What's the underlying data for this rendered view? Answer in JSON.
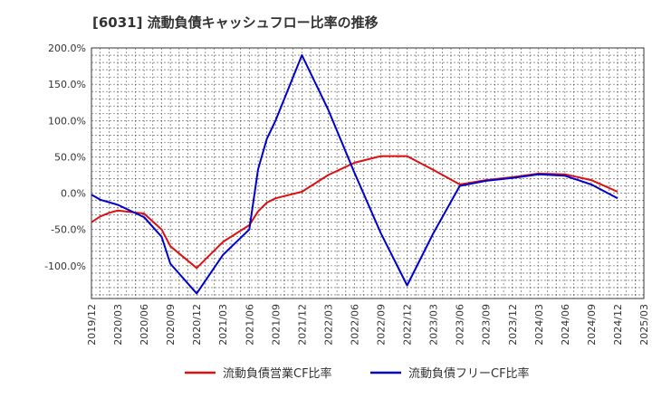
{
  "chart_data": {
    "type": "line",
    "title": "[6031]  流動負債キャッシュフロー比率の推移",
    "xlabel": "",
    "ylabel": "",
    "x_ticks": [
      "2019/12",
      "2020/03",
      "2020/06",
      "2020/09",
      "2020/12",
      "2021/03",
      "2021/06",
      "2021/09",
      "2021/12",
      "2022/03",
      "2022/06",
      "2022/09",
      "2022/12",
      "2023/03",
      "2023/06",
      "2023/09",
      "2023/12",
      "2024/03",
      "2024/06",
      "2024/09",
      "2024/12",
      "2025/03"
    ],
    "y_ticks": [
      {
        "value": 200,
        "label": "200.0%"
      },
      {
        "value": 150,
        "label": "150.0%"
      },
      {
        "value": 100,
        "label": "100.0%"
      },
      {
        "value": 50,
        "label": "50.0%"
      },
      {
        "value": 0,
        "label": "0.0%"
      },
      {
        "value": -50,
        "label": "-50.0%"
      },
      {
        "value": -100,
        "label": "-100.0%"
      }
    ],
    "ylim": [
      -145,
      200
    ],
    "grid": true,
    "legend_position": "bottom",
    "series": [
      {
        "name": "流動負債営業CF比率",
        "color": "#dd1111",
        "points": [
          [
            "2019/12",
            -40
          ],
          [
            "2020/01",
            -32
          ],
          [
            "2020/02",
            -27
          ],
          [
            "2020/03",
            -24
          ],
          [
            "2020/06",
            -28
          ],
          [
            "2020/08",
            -50
          ],
          [
            "2020/09",
            -73
          ],
          [
            "2020/12",
            -103
          ],
          [
            "2021/03",
            -67
          ],
          [
            "2021/06",
            -44
          ],
          [
            "2021/07",
            -25
          ],
          [
            "2021/08",
            -13
          ],
          [
            "2021/09",
            -7
          ],
          [
            "2021/12",
            2
          ],
          [
            "2022/03",
            25
          ],
          [
            "2022/06",
            42
          ],
          [
            "2022/09",
            51
          ],
          [
            "2022/12",
            51
          ],
          [
            "2023/03",
            32
          ],
          [
            "2023/06",
            12
          ],
          [
            "2023/09",
            18
          ],
          [
            "2023/12",
            22
          ],
          [
            "2024/03",
            27
          ],
          [
            "2024/06",
            26
          ],
          [
            "2024/09",
            18
          ],
          [
            "2024/12",
            2
          ]
        ]
      },
      {
        "name": "流動負債フリーCF比率",
        "color": "#0000cc",
        "points": [
          [
            "2019/12",
            -2
          ],
          [
            "2020/01",
            -9
          ],
          [
            "2020/03",
            -16
          ],
          [
            "2020/06",
            -33
          ],
          [
            "2020/08",
            -60
          ],
          [
            "2020/09",
            -97
          ],
          [
            "2020/12",
            -138
          ],
          [
            "2021/03",
            -85
          ],
          [
            "2021/06",
            -50
          ],
          [
            "2021/07",
            33
          ],
          [
            "2021/08",
            75
          ],
          [
            "2021/09",
            100
          ],
          [
            "2021/12",
            190
          ],
          [
            "2022/03",
            115
          ],
          [
            "2022/06",
            28
          ],
          [
            "2022/09",
            -55
          ],
          [
            "2022/12",
            -127
          ],
          [
            "2023/03",
            -55
          ],
          [
            "2023/06",
            10
          ],
          [
            "2023/09",
            17
          ],
          [
            "2023/12",
            21
          ],
          [
            "2024/03",
            26
          ],
          [
            "2024/06",
            24
          ],
          [
            "2024/09",
            12
          ],
          [
            "2024/12",
            -7
          ]
        ]
      }
    ]
  }
}
